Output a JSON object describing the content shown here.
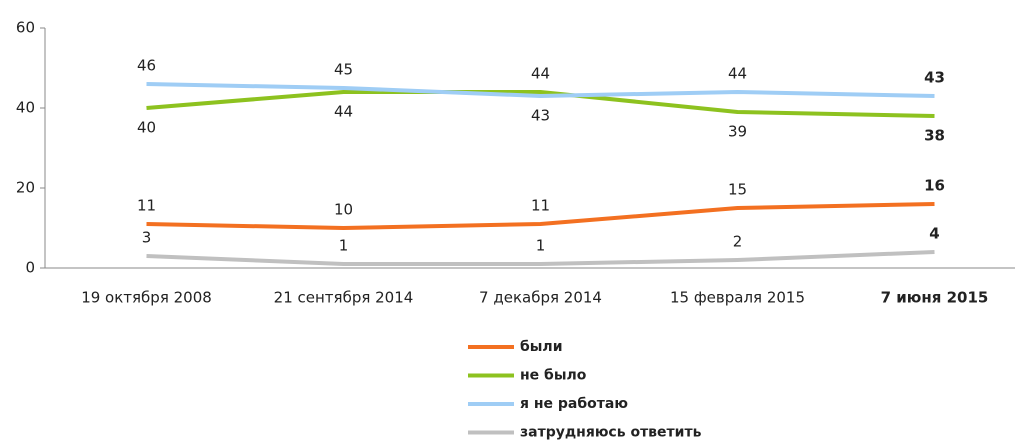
{
  "chart_data": {
    "type": "line",
    "categories": [
      "19 октября 2008",
      "21 сентября 2014",
      "7 декабря 2014",
      "15 февраля 2015",
      "7 июня 2015"
    ],
    "series": [
      {
        "name": "были",
        "color": "#f37021",
        "values": [
          11,
          10,
          11,
          15,
          16
        ]
      },
      {
        "name": "не было",
        "color": "#8dc21f",
        "values": [
          40,
          44,
          44,
          39,
          38
        ]
      },
      {
        "name": "я не работаю",
        "color": "#9fcdf5",
        "values": [
          46,
          45,
          43,
          44,
          43
        ]
      },
      {
        "name": "затрудняюсь ответить",
        "color": "#c0c0c0",
        "values": [
          3,
          1,
          1,
          2,
          4
        ]
      }
    ],
    "ylim": [
      0,
      60
    ],
    "yticks": [
      0,
      20,
      40,
      60
    ],
    "grid": false,
    "legend": "bottom"
  }
}
